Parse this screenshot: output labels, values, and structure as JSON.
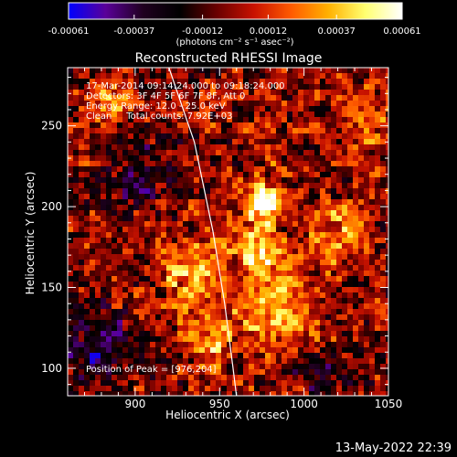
{
  "chart_data": {
    "type": "heatmap",
    "title": "Reconstructed RHESSI Image",
    "xlabel": "Heliocentric X (arcsec)",
    "ylabel": "Heliocentric Y (arcsec)",
    "xlim": [
      860,
      1050
    ],
    "ylim": [
      83,
      286
    ],
    "xticks": [
      900,
      950,
      1000,
      1050
    ],
    "yticks": [
      100,
      150,
      200,
      250
    ],
    "colorbar": {
      "label": "(photons cm⁻² s⁻¹ asec⁻²)",
      "ticks": [
        "-0.00061",
        "-0.00037",
        "-0.00012",
        "0.00012",
        "0.00037",
        "0.00061"
      ],
      "range": [
        -0.00061,
        0.00061
      ],
      "colormap": [
        "#0000ff",
        "#5a0099",
        "#200020",
        "#000000",
        "#6a0000",
        "#c81200",
        "#ff5a00",
        "#ffb000",
        "#ffff70",
        "#ffffff"
      ]
    },
    "annotations": {
      "time": "17-Mar-2014 09:14:24.000 to 09:18:24.000",
      "detectors": "Detectors: 3F 4F 5F 6F 7F 8F, Att 0",
      "energy": "Energy Range: 12.0 - 25.0 keV",
      "clean": "Clean     Total counts: 7.92E+03",
      "peak": "Position of Peak = [976,204]"
    },
    "peak": {
      "x": 976,
      "y": 204
    },
    "limb_points": [
      [
        920,
        286
      ],
      [
        935,
        240
      ],
      [
        946,
        185
      ],
      [
        953,
        140
      ],
      [
        958,
        100
      ],
      [
        960,
        83
      ]
    ],
    "bright_sources": [
      {
        "x": 976,
        "y": 204,
        "peak": 0.00061,
        "sx": 6,
        "sy": 6
      },
      {
        "x": 975,
        "y": 175,
        "peak": 0.00042,
        "sx": 9,
        "sy": 28
      },
      {
        "x": 935,
        "y": 160,
        "peak": 0.0004,
        "sx": 14,
        "sy": 14
      },
      {
        "x": 945,
        "y": 118,
        "peak": 0.00034,
        "sx": 10,
        "sy": 12
      },
      {
        "x": 990,
        "y": 132,
        "peak": 0.00032,
        "sx": 14,
        "sy": 16
      },
      {
        "x": 1020,
        "y": 185,
        "peak": 0.0003,
        "sx": 12,
        "sy": 14
      },
      {
        "x": 885,
        "y": 262,
        "peak": 0.00026,
        "sx": 10,
        "sy": 12
      },
      {
        "x": 1038,
        "y": 255,
        "peak": 0.00024,
        "sx": 10,
        "sy": 14
      }
    ],
    "dim_regions": [
      {
        "x": 880,
        "y": 112,
        "peak": -0.0003,
        "sx": 18,
        "sy": 16
      },
      {
        "x": 905,
        "y": 225,
        "peak": -0.00022,
        "sx": 14,
        "sy": 22
      },
      {
        "x": 1010,
        "y": 100,
        "peak": -0.0002,
        "sx": 14,
        "sy": 12
      }
    ]
  },
  "footer_timestamp": "13-May-2022 22:39"
}
